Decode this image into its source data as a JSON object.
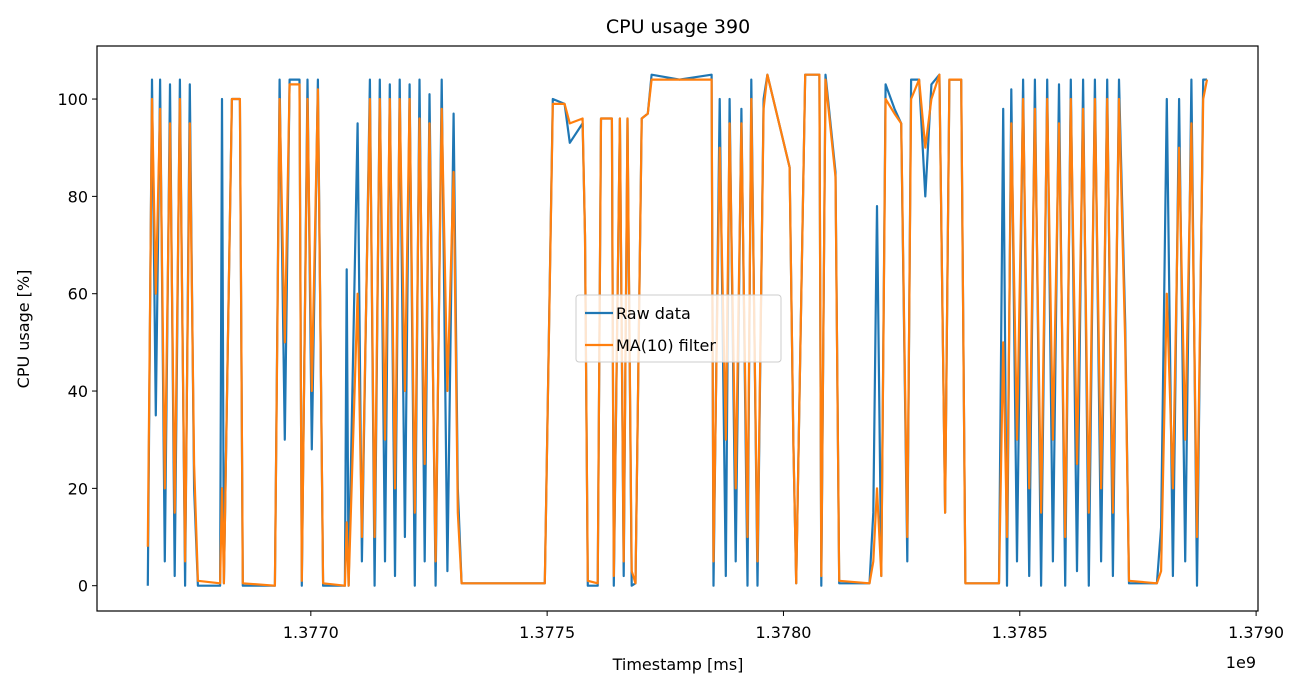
{
  "chart_data": {
    "type": "line",
    "title": "CPU usage 390",
    "xlabel": "Timestamp [ms]",
    "ylabel": "CPU usage [%]",
    "x_offset_label": "1e9",
    "xlim": [
      1376547600,
      1379004000
    ],
    "ylim": [
      -5.2,
      110.9
    ],
    "xticks": [
      {
        "value": 1377000000,
        "label": "1.3770"
      },
      {
        "value": 1377500000,
        "label": "1.3775"
      },
      {
        "value": 1378000000,
        "label": "1.3780"
      },
      {
        "value": 1378500000,
        "label": "1.3785"
      },
      {
        "value": 1379000000,
        "label": "1.3790"
      }
    ],
    "yticks": [
      0,
      20,
      40,
      60,
      80,
      100
    ],
    "grid": false,
    "legend": "center",
    "x": [
      1376655000,
      1376664000,
      1376672000,
      1376681000,
      1376691000,
      1376702000,
      1376712000,
      1376723000,
      1376734000,
      1376744000,
      1376753000,
      1376761000,
      1376808000,
      1376812000,
      1376816000,
      1376833000,
      1376850000,
      1376856000,
      1376924000,
      1376934000,
      1376945000,
      1376955000,
      1376976000,
      1376981000,
      1376993000,
      1377002000,
      1377015000,
      1377026000,
      1377072000,
      1377076000,
      1377080000,
      1377099000,
      1377108000,
      1377125000,
      1377135000,
      1377146000,
      1377157000,
      1377167000,
      1377178000,
      1377188000,
      1377199000,
      1377209000,
      1377220000,
      1377230000,
      1377241000,
      1377251000,
      1377264000,
      1377277000,
      1377289000,
      1377302000,
      1377311000,
      1377319000,
      1377495000,
      1377512000,
      1377537000,
      1377548000,
      1377575000,
      1377580000,
      1377586000,
      1377607000,
      1377614000,
      1377637000,
      1377641000,
      1377654000,
      1377662000,
      1377670000,
      1377679000,
      1377687000,
      1377700000,
      1377713000,
      1377721000,
      1377780000,
      1377848000,
      1377852000,
      1377865000,
      1377878000,
      1377886000,
      1377899000,
      1377911000,
      1377924000,
      1377932000,
      1377945000,
      1377958000,
      1377966000,
      1378013000,
      1378021000,
      1378027000,
      1378046000,
      1378076000,
      1378080000,
      1378089000,
      1378110000,
      1378118000,
      1378182000,
      1378190000,
      1378198000,
      1378207000,
      1378216000,
      1378235000,
      1378249000,
      1378262000,
      1378270000,
      1378287000,
      1378300000,
      1378313000,
      1378330000,
      1378342000,
      1378351000,
      1378376000,
      1378385000,
      1378456000,
      1378465000,
      1378473000,
      1378482000,
      1378494000,
      1378507000,
      1378520000,
      1378532000,
      1378545000,
      1378558000,
      1378570000,
      1378583000,
      1378596000,
      1378608000,
      1378621000,
      1378634000,
      1378646000,
      1378659000,
      1378672000,
      1378685000,
      1378697000,
      1378710000,
      1378723000,
      1378731000,
      1378790000,
      1378799000,
      1378811000,
      1378824000,
      1378837000,
      1378850000,
      1378863000,
      1378875000,
      1378888000,
      1378896000
    ],
    "series": [
      {
        "name": "Raw data",
        "color": "#1f77b4",
        "values": [
          0,
          104,
          35,
          104,
          5,
          103,
          2,
          104,
          0,
          103,
          20,
          0,
          0,
          100,
          0.5,
          100,
          100,
          0,
          0,
          104,
          30,
          104,
          104,
          0,
          104,
          28,
          104,
          0,
          0,
          65,
          0,
          95,
          5,
          104,
          0,
          104,
          5,
          103,
          2,
          104,
          10,
          103,
          0,
          104,
          5,
          101,
          0,
          104,
          3,
          97,
          20,
          0.5,
          0.5,
          100,
          99,
          91,
          95,
          72,
          0,
          0,
          96,
          96,
          0,
          96,
          2,
          96,
          0,
          0.5,
          96,
          97,
          105,
          104,
          105,
          0,
          100,
          2,
          100,
          5,
          98,
          0,
          104,
          0,
          100,
          105,
          86,
          29,
          0.5,
          105,
          105,
          0,
          105,
          85,
          0.5,
          0.5,
          15,
          78,
          2,
          103,
          98,
          95,
          5,
          104,
          104,
          80,
          103,
          105,
          15,
          104,
          104,
          0.5,
          0.5,
          98,
          0,
          102,
          5,
          104,
          2,
          104,
          0,
          104,
          5,
          103,
          0,
          104,
          3,
          104,
          0,
          104,
          5,
          104,
          2,
          104,
          54,
          0.5,
          0.5,
          12,
          100,
          2,
          100,
          5,
          104,
          0,
          104,
          104
        ]
      },
      {
        "name": "MA(10) filter",
        "color": "#ff7f0e",
        "values": [
          8,
          100,
          60,
          98,
          20,
          95,
          15,
          100,
          5,
          95,
          25,
          1,
          0.5,
          20,
          0.5,
          100,
          100,
          0.5,
          0,
          100,
          50,
          103,
          103,
          1,
          100,
          40,
          102,
          0.5,
          0,
          13,
          0,
          60,
          10,
          100,
          10,
          100,
          30,
          100,
          20,
          100,
          40,
          100,
          15,
          96,
          25,
          95,
          5,
          98,
          40,
          85,
          15,
          0.5,
          0.5,
          99,
          99,
          95,
          96,
          72,
          1,
          0.5,
          96,
          96,
          2,
          96,
          5,
          96,
          3,
          0.5,
          96,
          97,
          104,
          104,
          104,
          5,
          90,
          30,
          95,
          20,
          95,
          10,
          100,
          5,
          98,
          105,
          86,
          29,
          0.5,
          105,
          105,
          2,
          104,
          84,
          1,
          0.5,
          5,
          20,
          2,
          100,
          97,
          95,
          10,
          100,
          104,
          90,
          100,
          105,
          15,
          104,
          104,
          0.5,
          0.5,
          50,
          10,
          95,
          30,
          100,
          20,
          98,
          15,
          100,
          30,
          95,
          10,
          100,
          25,
          98,
          15,
          100,
          20,
          100,
          15,
          100,
          50,
          1,
          0.5,
          3,
          60,
          20,
          90,
          30,
          95,
          10,
          100,
          104
        ]
      }
    ]
  }
}
